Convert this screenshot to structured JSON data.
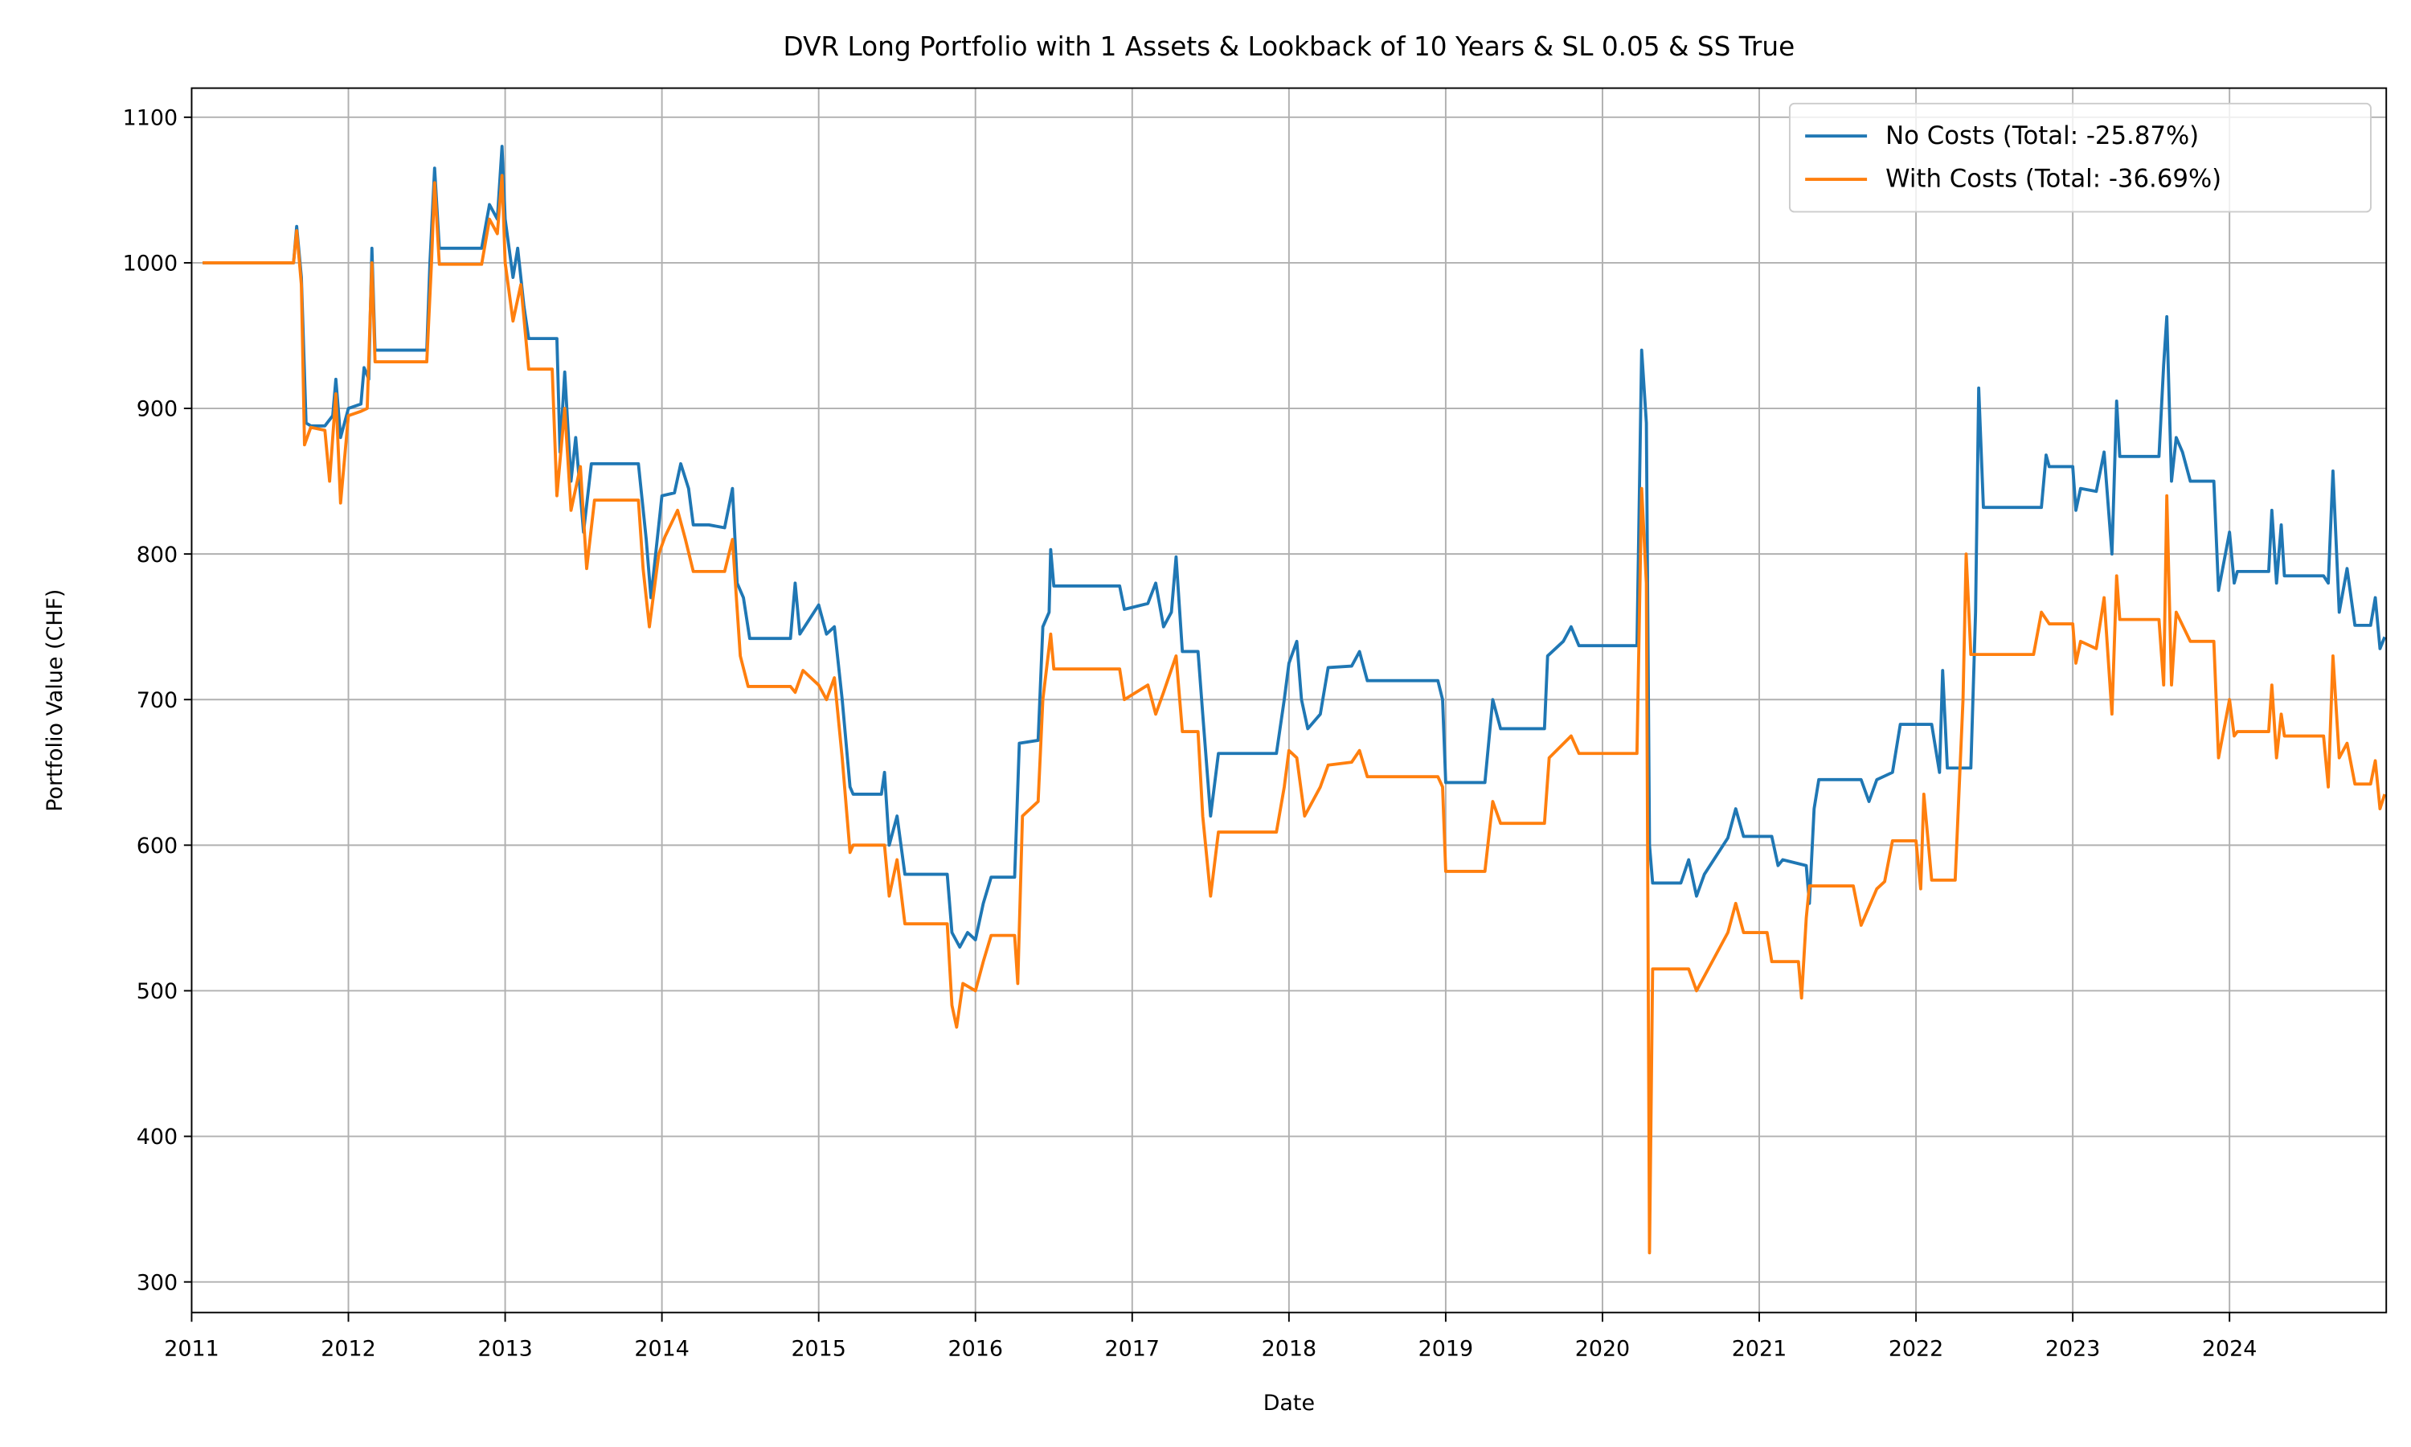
{
  "chart_data": {
    "type": "line",
    "title": "DVR Long Portfolio with 1 Assets & Lookback of 10 Years & SL 0.05 & SS True",
    "x_label": "Date",
    "y_label": "Portfolio Value (CHF)",
    "xlim": [
      2011.0,
      2025.0
    ],
    "ylim": [
      279,
      1120
    ],
    "xticks": [
      2011,
      2012,
      2013,
      2014,
      2015,
      2016,
      2017,
      2018,
      2019,
      2020,
      2021,
      2022,
      2023,
      2024
    ],
    "yticks": [
      300,
      400,
      500,
      600,
      700,
      800,
      900,
      1000,
      1100
    ],
    "grid": true,
    "legend": "upper right",
    "series": [
      {
        "name": "No Costs (Total: -25.87%)",
        "color": "#1f77b4",
        "x": [
          2011.07,
          2011.65,
          2011.67,
          2011.7,
          2011.73,
          2011.76,
          2011.85,
          2011.9,
          2011.92,
          2011.95,
          2012.0,
          2012.08,
          2012.1,
          2012.13,
          2012.15,
          2012.17,
          2012.5,
          2012.52,
          2012.55,
          2012.58,
          2012.85,
          2012.9,
          2012.95,
          2012.98,
          2013.0,
          2013.05,
          2013.08,
          2013.12,
          2013.15,
          2013.33,
          2013.35,
          2013.38,
          2013.42,
          2013.45,
          2013.5,
          2013.55,
          2013.85,
          2013.9,
          2013.93,
          2014.0,
          2014.08,
          2014.12,
          2014.17,
          2014.2,
          2014.3,
          2014.4,
          2014.45,
          2014.48,
          2014.52,
          2014.56,
          2014.82,
          2014.85,
          2014.88,
          2015.0,
          2015.05,
          2015.1,
          2015.15,
          2015.2,
          2015.22,
          2015.4,
          2015.42,
          2015.45,
          2015.5,
          2015.55,
          2015.82,
          2015.85,
          2015.9,
          2015.95,
          2016.0,
          2016.05,
          2016.1,
          2016.25,
          2016.28,
          2016.4,
          2016.43,
          2016.47,
          2016.48,
          2016.5,
          2016.92,
          2016.95,
          2017.1,
          2017.15,
          2017.2,
          2017.25,
          2017.28,
          2017.32,
          2017.42,
          2017.45,
          2017.5,
          2017.55,
          2017.92,
          2017.97,
          2018.0,
          2018.05,
          2018.08,
          2018.12,
          2018.2,
          2018.25,
          2018.4,
          2018.45,
          2018.5,
          2018.95,
          2018.98,
          2019.0,
          2019.25,
          2019.3,
          2019.35,
          2019.63,
          2019.65,
          2019.75,
          2019.8,
          2019.85,
          2020.22,
          2020.25,
          2020.28,
          2020.3,
          2020.32,
          2020.5,
          2020.55,
          2020.6,
          2020.65,
          2020.8,
          2020.85,
          2020.9,
          2021.08,
          2021.12,
          2021.15,
          2021.3,
          2021.32,
          2021.35,
          2021.38,
          2021.65,
          2021.7,
          2021.75,
          2021.85,
          2021.9,
          2022.1,
          2022.15,
          2022.17,
          2022.2,
          2022.35,
          2022.38,
          2022.4,
          2022.43,
          2022.8,
          2022.83,
          2022.85,
          2023.0,
          2023.02,
          2023.05,
          2023.15,
          2023.2,
          2023.25,
          2023.28,
          2023.3,
          2023.55,
          2023.58,
          2023.6,
          2023.63,
          2023.66,
          2023.7,
          2023.75,
          2023.9,
          2023.93,
          2024.0,
          2024.03,
          2024.05,
          2024.25,
          2024.27,
          2024.3,
          2024.33,
          2024.35,
          2024.6,
          2024.63,
          2024.66,
          2024.7,
          2024.75,
          2024.8,
          2024.9,
          2024.93,
          2024.96,
          2024.99
        ],
        "values": [
          1000,
          1000,
          1025,
          990,
          890,
          888,
          888,
          895,
          920,
          880,
          900,
          903,
          928,
          920,
          1010,
          940,
          940,
          1000,
          1065,
          1010,
          1010,
          1040,
          1030,
          1080,
          1030,
          990,
          1010,
          970,
          948,
          948,
          870,
          925,
          850,
          880,
          815,
          862,
          862,
          810,
          770,
          840,
          842,
          862,
          845,
          820,
          820,
          818,
          845,
          780,
          770,
          742,
          742,
          780,
          745,
          765,
          745,
          750,
          700,
          640,
          635,
          635,
          650,
          600,
          620,
          580,
          580,
          540,
          530,
          540,
          535,
          560,
          578,
          578,
          670,
          672,
          750,
          760,
          803,
          778,
          778,
          762,
          766,
          780,
          750,
          760,
          798,
          733,
          733,
          690,
          620,
          663,
          663,
          700,
          725,
          740,
          700,
          680,
          690,
          722,
          723,
          733,
          713,
          713,
          700,
          643,
          643,
          700,
          680,
          680,
          730,
          740,
          750,
          737,
          737,
          940,
          890,
          600,
          574,
          574,
          590,
          565,
          580,
          605,
          625,
          606,
          606,
          586,
          590,
          586,
          560,
          625,
          645,
          645,
          630,
          645,
          650,
          683,
          683,
          650,
          720,
          653,
          653,
          760,
          914,
          832,
          832,
          868,
          860,
          860,
          830,
          845,
          843,
          870,
          800,
          905,
          867,
          867,
          930,
          963,
          850,
          880,
          870,
          850,
          850,
          775,
          815,
          780,
          788,
          788,
          830,
          780,
          820,
          785,
          785,
          780,
          857,
          760,
          790,
          751,
          751,
          770,
          735,
          743
        ]
      },
      {
        "name": "With Costs (Total: -36.69%)",
        "color": "#ff7f0e",
        "x": [
          2011.07,
          2011.65,
          2011.67,
          2011.7,
          2011.72,
          2011.76,
          2011.85,
          2011.88,
          2011.92,
          2011.95,
          2012.0,
          2012.08,
          2012.12,
          2012.15,
          2012.17,
          2012.5,
          2012.53,
          2012.55,
          2012.58,
          2012.85,
          2012.9,
          2012.95,
          2012.98,
          2013.0,
          2013.05,
          2013.1,
          2013.15,
          2013.3,
          2013.33,
          2013.38,
          2013.42,
          2013.48,
          2013.52,
          2013.57,
          2013.85,
          2013.88,
          2013.92,
          2013.98,
          2014.02,
          2014.1,
          2014.15,
          2014.2,
          2014.4,
          2014.45,
          2014.5,
          2014.55,
          2014.82,
          2014.85,
          2014.9,
          2015.0,
          2015.05,
          2015.1,
          2015.15,
          2015.2,
          2015.22,
          2015.42,
          2015.45,
          2015.5,
          2015.55,
          2015.82,
          2015.85,
          2015.88,
          2015.92,
          2016.0,
          2016.05,
          2016.1,
          2016.25,
          2016.27,
          2016.3,
          2016.4,
          2016.43,
          2016.48,
          2016.5,
          2016.92,
          2016.95,
          2017.1,
          2017.15,
          2017.2,
          2017.28,
          2017.32,
          2017.42,
          2017.45,
          2017.5,
          2017.55,
          2017.92,
          2017.97,
          2018.0,
          2018.05,
          2018.1,
          2018.2,
          2018.25,
          2018.4,
          2018.45,
          2018.5,
          2018.95,
          2018.98,
          2019.0,
          2019.25,
          2019.3,
          2019.35,
          2019.63,
          2019.66,
          2019.8,
          2019.85,
          2020.22,
          2020.25,
          2020.28,
          2020.3,
          2020.32,
          2020.55,
          2020.6,
          2020.7,
          2020.8,
          2020.85,
          2020.9,
          2021.05,
          2021.08,
          2021.15,
          2021.25,
          2021.27,
          2021.3,
          2021.32,
          2021.6,
          2021.65,
          2021.75,
          2021.8,
          2021.85,
          2022.0,
          2022.03,
          2022.05,
          2022.1,
          2022.25,
          2022.3,
          2022.32,
          2022.35,
          2022.75,
          2022.8,
          2022.85,
          2023.0,
          2023.02,
          2023.05,
          2023.15,
          2023.2,
          2023.25,
          2023.28,
          2023.3,
          2023.55,
          2023.58,
          2023.6,
          2023.63,
          2023.66,
          2023.75,
          2023.9,
          2023.93,
          2024.0,
          2024.03,
          2024.05,
          2024.25,
          2024.27,
          2024.3,
          2024.33,
          2024.35,
          2024.6,
          2024.63,
          2024.66,
          2024.7,
          2024.75,
          2024.8,
          2024.9,
          2024.93,
          2024.96,
          2024.99
        ],
        "values": [
          1000,
          1000,
          1022,
          985,
          875,
          887,
          885,
          850,
          910,
          835,
          895,
          898,
          900,
          1000,
          932,
          932,
          1000,
          1055,
          999,
          999,
          1030,
          1020,
          1060,
          1000,
          960,
          985,
          927,
          927,
          840,
          900,
          830,
          860,
          790,
          837,
          837,
          790,
          750,
          800,
          812,
          830,
          810,
          788,
          788,
          810,
          730,
          709,
          709,
          705,
          720,
          710,
          700,
          715,
          660,
          595,
          600,
          600,
          565,
          590,
          546,
          546,
          490,
          475,
          505,
          500,
          520,
          538,
          538,
          505,
          620,
          630,
          700,
          745,
          721,
          721,
          700,
          710,
          690,
          705,
          730,
          678,
          678,
          620,
          565,
          609,
          609,
          640,
          665,
          660,
          620,
          640,
          655,
          657,
          665,
          647,
          647,
          640,
          582,
          582,
          630,
          615,
          615,
          660,
          675,
          663,
          663,
          845,
          780,
          320,
          515,
          515,
          500,
          520,
          540,
          560,
          540,
          540,
          520,
          520,
          520,
          495,
          550,
          572,
          572,
          545,
          570,
          575,
          603,
          603,
          570,
          635,
          576,
          576,
          700,
          800,
          731,
          731,
          760,
          752,
          752,
          725,
          740,
          735,
          770,
          690,
          785,
          755,
          755,
          710,
          840,
          710,
          760,
          740,
          740,
          660,
          700,
          675,
          678,
          678,
          710,
          660,
          690,
          675,
          675,
          640,
          730,
          660,
          670,
          642,
          642,
          658,
          625,
          635
        ]
      }
    ]
  }
}
